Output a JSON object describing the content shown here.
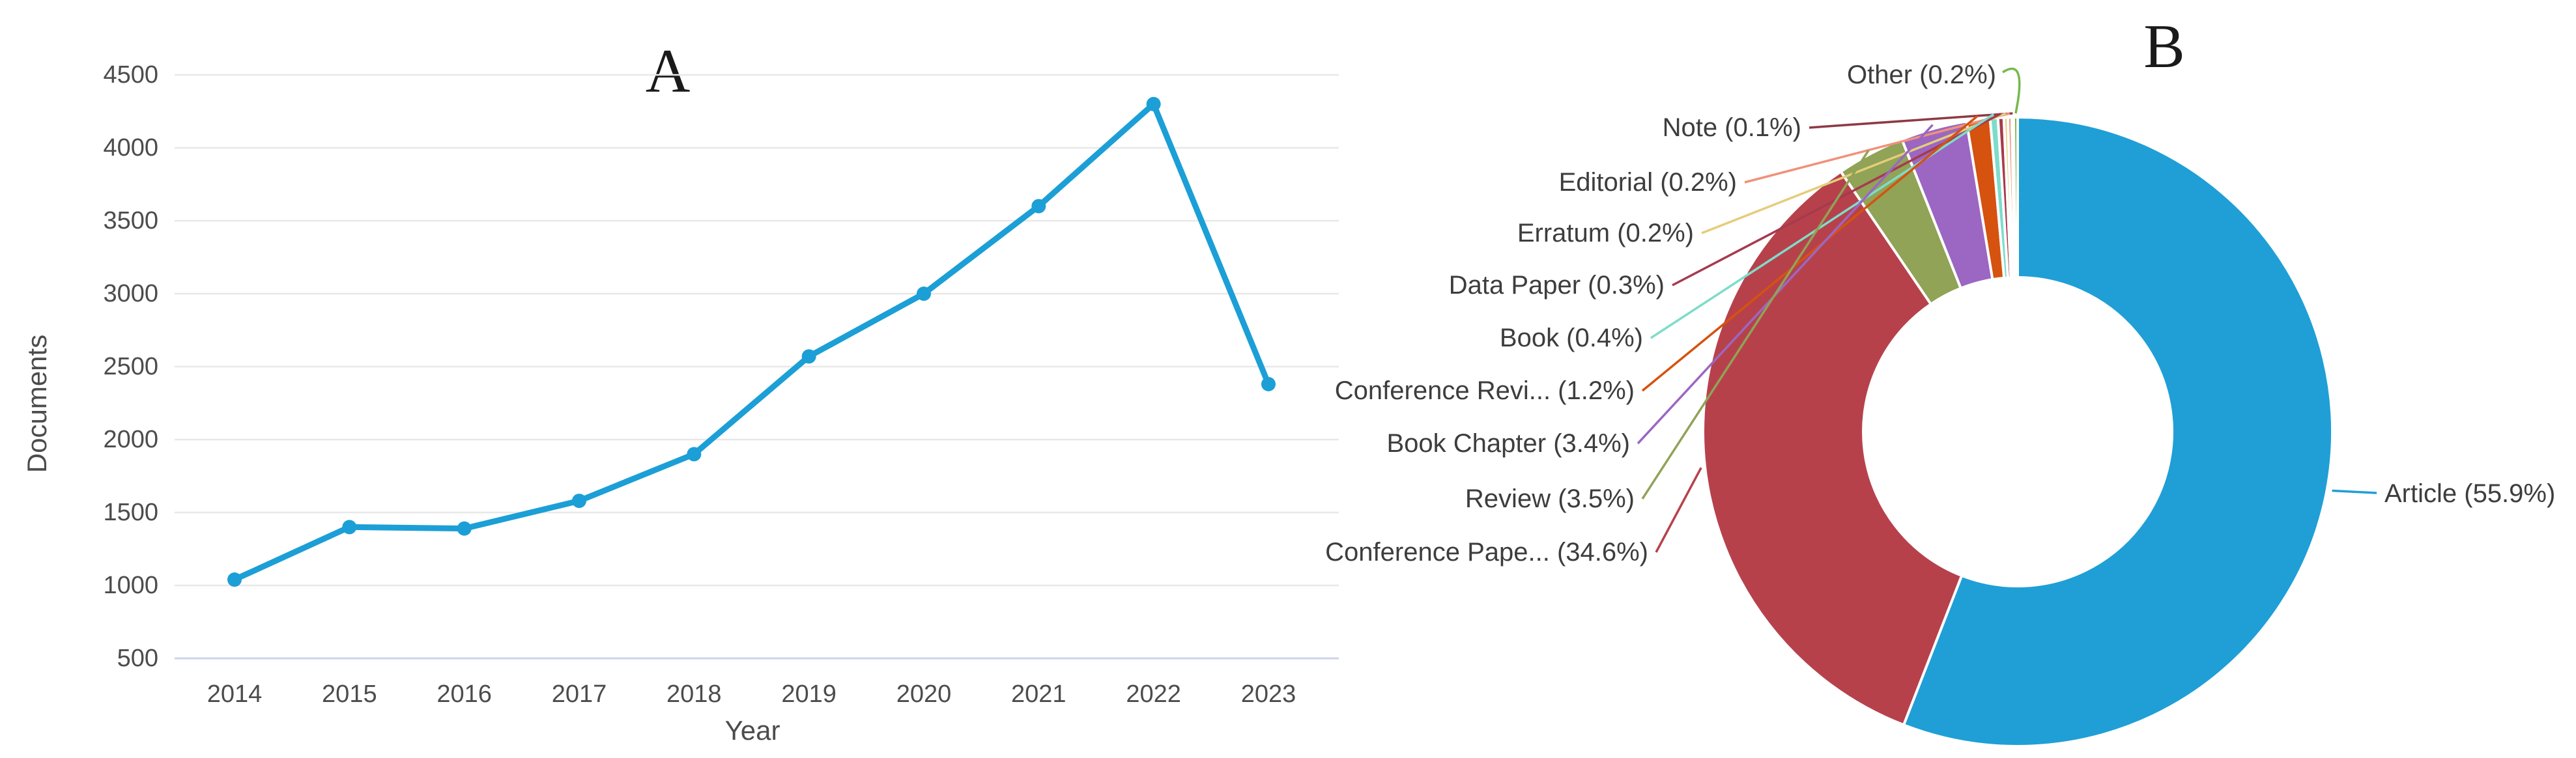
{
  "panel_a": {
    "title": "A",
    "y_axis_label": "Documents",
    "x_axis_label": "Year"
  },
  "panel_b": {
    "title": "B"
  },
  "chart_data": [
    {
      "type": "line",
      "title": "A",
      "xlabel": "Year",
      "ylabel": "Documents",
      "x": [
        2014,
        2015,
        2016,
        2017,
        2018,
        2019,
        2020,
        2021,
        2022,
        2023
      ],
      "x_tick_labels": [
        "2014",
        "2015",
        "2016",
        "2017",
        "2018",
        "2019",
        "2020",
        "2021",
        "2022",
        "2023"
      ],
      "series": [
        {
          "name": "Documents",
          "values": [
            1040,
            1400,
            1390,
            1580,
            1900,
            2570,
            3000,
            3600,
            4300,
            2380
          ]
        }
      ],
      "ylim": [
        500,
        4500
      ],
      "ytick_step": 500,
      "y_tick_labels": [
        "500",
        "1000",
        "1500",
        "2000",
        "2500",
        "3000",
        "3500",
        "4000",
        "4500"
      ],
      "grid": true,
      "line_color": "#1b9fd6",
      "grid_color": "#e8e8e8",
      "baseline_grid_color": "#ccd3ed",
      "tick_text_color": "#4c4c4c"
    },
    {
      "type": "pie",
      "title": "B",
      "donut": true,
      "label_text_color": "#3d3d3d",
      "slices": [
        {
          "label": "Article",
          "value": 55.9,
          "display": "Article (55.9%)",
          "color": "#1f9fd6"
        },
        {
          "label": "Conference Paper",
          "value": 34.6,
          "display": "Conference Pape... (34.6%)",
          "color": "#b7414b"
        },
        {
          "label": "Review",
          "value": 3.5,
          "display": "Review (3.5%)",
          "color": "#90a356"
        },
        {
          "label": "Book Chapter",
          "value": 3.4,
          "display": "Book Chapter (3.4%)",
          "color": "#9b67c2"
        },
        {
          "label": "Conference Review",
          "value": 1.2,
          "display": "Conference Revi... (1.2%)",
          "color": "#d5520f"
        },
        {
          "label": "Book",
          "value": 0.4,
          "display": "Book (0.4%)",
          "color": "#7edccb"
        },
        {
          "label": "Data Paper",
          "value": 0.3,
          "display": "Data Paper (0.3%)",
          "color": "#a63a4e"
        },
        {
          "label": "Erratum",
          "value": 0.2,
          "display": "Erratum (0.2%)",
          "color": "#e4cd7a"
        },
        {
          "label": "Editorial",
          "value": 0.2,
          "display": "Editorial (0.2%)",
          "color": "#f0917a"
        },
        {
          "label": "Note",
          "value": 0.1,
          "display": "Note (0.1%)",
          "color": "#8d3a45"
        },
        {
          "label": "Other",
          "value": 0.2,
          "display": "Other (0.2%)",
          "color": "#74b94e"
        }
      ]
    }
  ]
}
